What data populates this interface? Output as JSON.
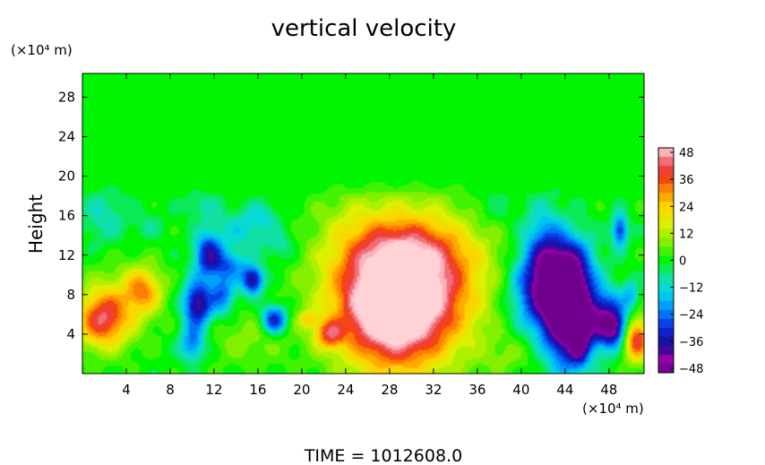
{
  "chart_data": {
    "type": "heatmap",
    "title": "vertical velocity",
    "ylabel": "Height",
    "x_unit": "(×10⁴ m)",
    "y_unit": "(×10⁴ m)",
    "x_ticks": [
      4,
      8,
      12,
      16,
      20,
      24,
      28,
      32,
      36,
      40,
      44,
      48
    ],
    "y_ticks": [
      4,
      8,
      12,
      16,
      20,
      24,
      28
    ],
    "xlim": [
      0,
      51.2
    ],
    "ylim": [
      0,
      30.4
    ],
    "colorbar": {
      "ticks": [
        48,
        36,
        24,
        12,
        0,
        -12,
        -24,
        -36,
        -48
      ],
      "range": [
        -50,
        50
      ]
    },
    "footer": "TIME  =  1012608.0",
    "features": [
      {
        "x": 28.5,
        "y": 7.0,
        "w": 52,
        "sx": 3.6,
        "sy": 4.8
      },
      {
        "x": 30.0,
        "y": 9.5,
        "w": 30,
        "sx": 5.0,
        "sy": 4.8
      },
      {
        "x": 27.5,
        "y": 6.5,
        "w": 14,
        "sx": 1.5,
        "sy": 1.6
      },
      {
        "x": 30.0,
        "y": 12.5,
        "w": 8,
        "sx": 4.5,
        "sy": 2.0
      },
      {
        "x": 1.8,
        "y": 5.5,
        "w": 36,
        "sx": 1.6,
        "sy": 2.0
      },
      {
        "x": 5.5,
        "y": 8.5,
        "w": 26,
        "sx": 1.2,
        "sy": 1.6
      },
      {
        "x": 3.5,
        "y": 7.0,
        "w": 10,
        "sx": 2.5,
        "sy": 3.0
      },
      {
        "x": 22.5,
        "y": 4.0,
        "w": 28,
        "sx": 0.9,
        "sy": 1.0
      },
      {
        "x": 20.5,
        "y": 5.5,
        "w": 16,
        "sx": 0.6,
        "sy": 0.6
      },
      {
        "x": 50.5,
        "y": 3.5,
        "w": 42,
        "sx": 0.9,
        "sy": 1.6
      },
      {
        "x": 15.0,
        "y": 3.5,
        "w": 8,
        "sx": 2.5,
        "sy": 2.0
      },
      {
        "x": 39.0,
        "y": 2.0,
        "w": 6,
        "sx": 2.0,
        "sy": 1.5
      },
      {
        "x": 2.0,
        "y": 16.0,
        "w": -10,
        "sx": 1.5,
        "sy": 2.0
      },
      {
        "x": 10.5,
        "y": 7.0,
        "w": -42,
        "sx": 0.9,
        "sy": 1.6
      },
      {
        "x": 11.5,
        "y": 12.0,
        "w": -36,
        "sx": 0.9,
        "sy": 1.6
      },
      {
        "x": 12.8,
        "y": 8.0,
        "w": -24,
        "sx": 0.8,
        "sy": 1.4
      },
      {
        "x": 13.5,
        "y": 11.0,
        "w": -20,
        "sx": 1.0,
        "sy": 1.0
      },
      {
        "x": 15.5,
        "y": 9.5,
        "w": -40,
        "sx": 0.7,
        "sy": 1.0
      },
      {
        "x": 17.5,
        "y": 5.5,
        "w": -36,
        "sx": 0.8,
        "sy": 1.0
      },
      {
        "x": 10.0,
        "y": 3.0,
        "w": -24,
        "sx": 0.8,
        "sy": 1.2
      },
      {
        "x": 14.5,
        "y": 14.5,
        "w": -12,
        "sx": 1.5,
        "sy": 1.5
      },
      {
        "x": 16.5,
        "y": 16.0,
        "w": -10,
        "sx": 1.0,
        "sy": 1.0
      },
      {
        "x": 11.0,
        "y": 17.0,
        "w": -8,
        "sx": 1.2,
        "sy": 1.0
      },
      {
        "x": 18.0,
        "y": 13.0,
        "w": -10,
        "sx": 1.0,
        "sy": 1.2
      },
      {
        "x": 42.0,
        "y": 8.5,
        "w": -40,
        "sx": 2.0,
        "sy": 3.0
      },
      {
        "x": 44.2,
        "y": 6.0,
        "w": -58,
        "sx": 1.4,
        "sy": 3.6
      },
      {
        "x": 45.3,
        "y": 3.0,
        "w": -24,
        "sx": 0.6,
        "sy": 1.5
      },
      {
        "x": 47.5,
        "y": 5.5,
        "w": -38,
        "sx": 1.5,
        "sy": 2.0
      },
      {
        "x": 48.5,
        "y": 4.5,
        "w": -24,
        "sx": 0.8,
        "sy": 1.2
      },
      {
        "x": 44.5,
        "y": 10.5,
        "w": -24,
        "sx": 1.5,
        "sy": 2.5
      },
      {
        "x": 42.0,
        "y": 13.0,
        "w": -18,
        "sx": 1.2,
        "sy": 3.0
      },
      {
        "x": 49.0,
        "y": 14.5,
        "w": -30,
        "sx": 0.5,
        "sy": 1.2
      },
      {
        "x": 50.0,
        "y": 8.0,
        "w": -14,
        "sx": 0.5,
        "sy": 1.0
      },
      {
        "x": 6.0,
        "y": 15.0,
        "w": -6,
        "sx": 1.0,
        "sy": 1.0
      },
      {
        "x": 37.5,
        "y": 17.0,
        "w": -6,
        "sx": 1.5,
        "sy": 1.5
      },
      {
        "x": 24.0,
        "y": 16.0,
        "w": 4,
        "sx": 2.0,
        "sy": 2.0
      }
    ]
  }
}
